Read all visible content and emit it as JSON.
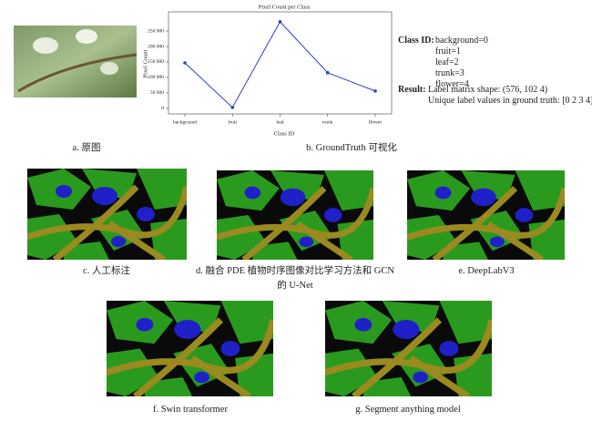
{
  "chart_data": {
    "type": "line",
    "title": "Pixel Count per Class",
    "x_label": "Class ID",
    "y_label": "Pixel Count",
    "categories": [
      "background",
      "fruit",
      "leaf",
      "trunk",
      "flower"
    ],
    "series": [
      {
        "name": "Pixel Count",
        "color": "#2f3fc4",
        "values": [
          147000,
          3000,
          280000,
          115000,
          56000
        ]
      }
    ],
    "ylim": [
      -18000,
      312000
    ],
    "yticks": [
      0,
      {
        "value": 50000,
        "label": "50 000"
      },
      {
        "value": 100000,
        "label": "100 000"
      },
      {
        "value": 150000,
        "label": "150 000"
      },
      {
        "value": 200000,
        "label": "200 000"
      },
      {
        "value": 250000,
        "label": "250 000"
      }
    ],
    "grid": false
  },
  "info": {
    "class_id_label": "Class ID:",
    "classes": [
      "background=0",
      "fruit=1",
      "leaf=2",
      "trunk=3",
      "flower=4"
    ],
    "result_label": "Result:",
    "results": [
      "Label matrix shape: (576, 102 4)",
      "Unique label values in ground truth: [0 2 3 4]"
    ]
  },
  "captions": {
    "a": "a. 原图",
    "b": "b. GroundTruth 可视化",
    "c": "c. 人工标注",
    "d": "d. 融合 PDE 植物时序图像对比学习方法和 GCN 的 U-Net",
    "e": "e. DeepLabV3",
    "f": "f. Swin transformer",
    "g": "g. Segment anything model"
  }
}
